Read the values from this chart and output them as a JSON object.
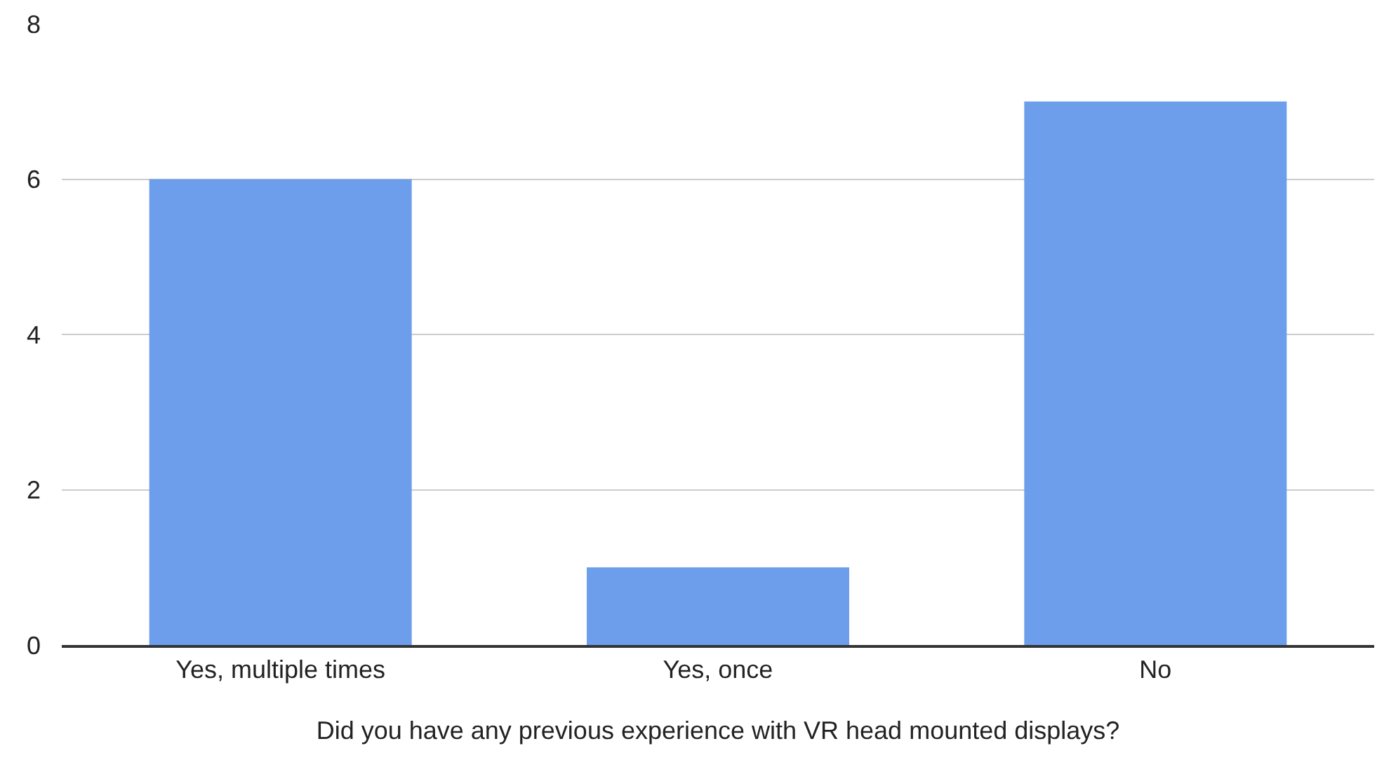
{
  "chart_data": {
    "type": "bar",
    "xlabel": "Did you have any previous experience with VR head mounted displays?",
    "categories": [
      "Yes, multiple times",
      "Yes, once",
      "No"
    ],
    "values": [
      6,
      1,
      7
    ],
    "color": "#6d9eeb",
    "ylim": [
      0,
      8
    ],
    "yticks": [
      0,
      2,
      4,
      6,
      8
    ],
    "grid": "y",
    "legend": false
  }
}
